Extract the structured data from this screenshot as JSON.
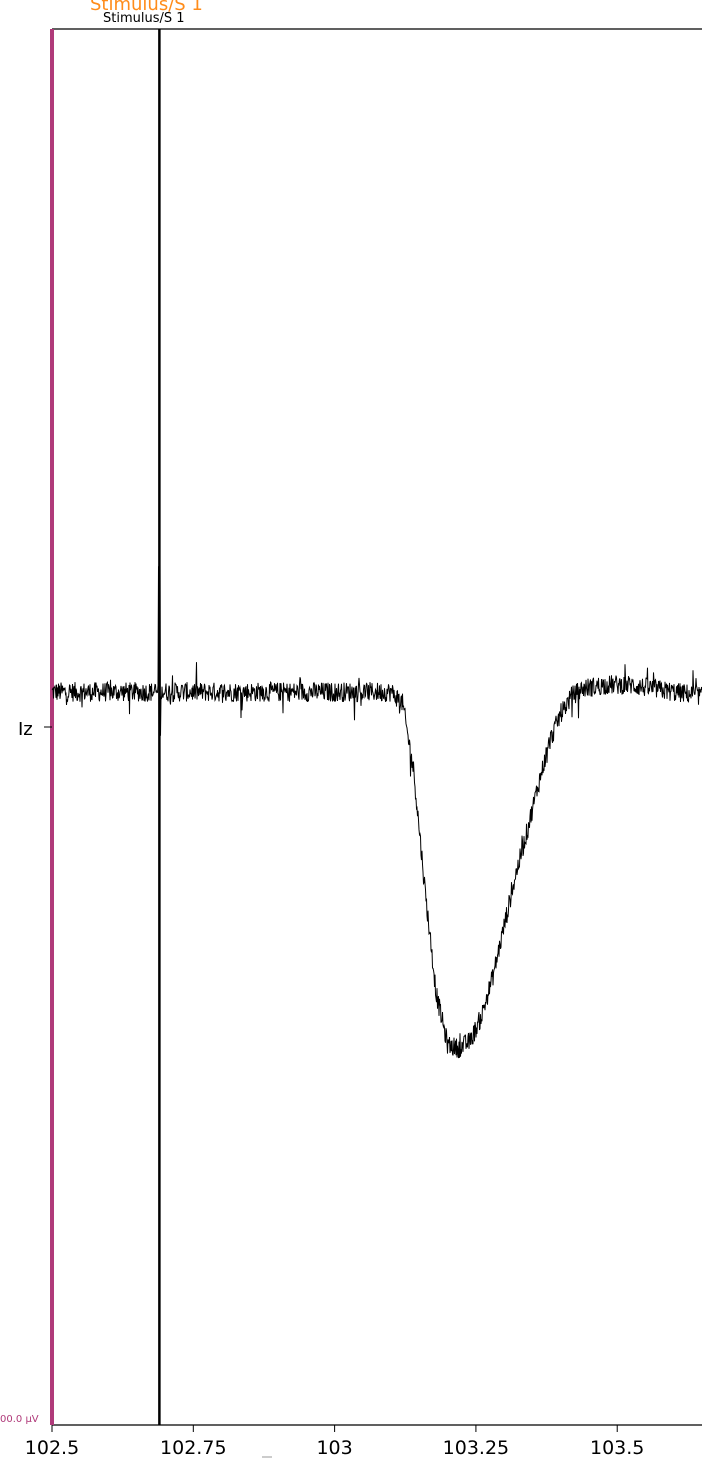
{
  "chart_data": {
    "type": "line",
    "xlim": [
      102.5,
      103.65
    ],
    "x_ticks": [
      102.5,
      102.75,
      103,
      103.25,
      103.5
    ],
    "x_tick_labels": [
      "102.5",
      "102.75",
      "103",
      "103.25",
      "103.5"
    ],
    "channel_label": "Iz",
    "scale_bar_label": "00.0 µV",
    "annotations": {
      "orange_label": "Stimulus/S  1",
      "black_label": "Stimulus/S  1",
      "event_x": 102.69
    },
    "series": [
      {
        "channel": "Iz",
        "color": "#000000",
        "points": [
          [
            102.5,
            0.0
          ],
          [
            102.56,
            0.0
          ],
          [
            102.62,
            0.0
          ],
          [
            102.68,
            0.0
          ],
          [
            102.7,
            0.0
          ],
          [
            102.76,
            0.0
          ],
          [
            102.82,
            0.0
          ],
          [
            102.88,
            0.0
          ],
          [
            102.94,
            0.0
          ],
          [
            103.0,
            0.0
          ],
          [
            103.06,
            0.0
          ],
          [
            103.1,
            0.0
          ],
          [
            103.12,
            -0.3
          ],
          [
            103.14,
            -2.2
          ],
          [
            103.16,
            -5.5
          ],
          [
            103.18,
            -8.4
          ],
          [
            103.2,
            -9.8
          ],
          [
            103.22,
            -9.9
          ],
          [
            103.24,
            -9.7
          ],
          [
            103.26,
            -9.0
          ],
          [
            103.28,
            -7.9
          ],
          [
            103.3,
            -6.5
          ],
          [
            103.32,
            -5.1
          ],
          [
            103.34,
            -3.9
          ],
          [
            103.36,
            -2.6
          ],
          [
            103.38,
            -1.4
          ],
          [
            103.4,
            -0.6
          ],
          [
            103.42,
            -0.1
          ],
          [
            103.44,
            0.1
          ],
          [
            103.48,
            0.2
          ],
          [
            103.52,
            0.2
          ],
          [
            103.56,
            0.1
          ],
          [
            103.6,
            0.0
          ],
          [
            103.65,
            -0.1
          ]
        ]
      }
    ]
  },
  "colors": {
    "axis": "#000000",
    "scale_bar": "#b03a7a",
    "trace": "#000000",
    "event_line": "#000000",
    "annotation_orange": "#ff8c1a"
  }
}
